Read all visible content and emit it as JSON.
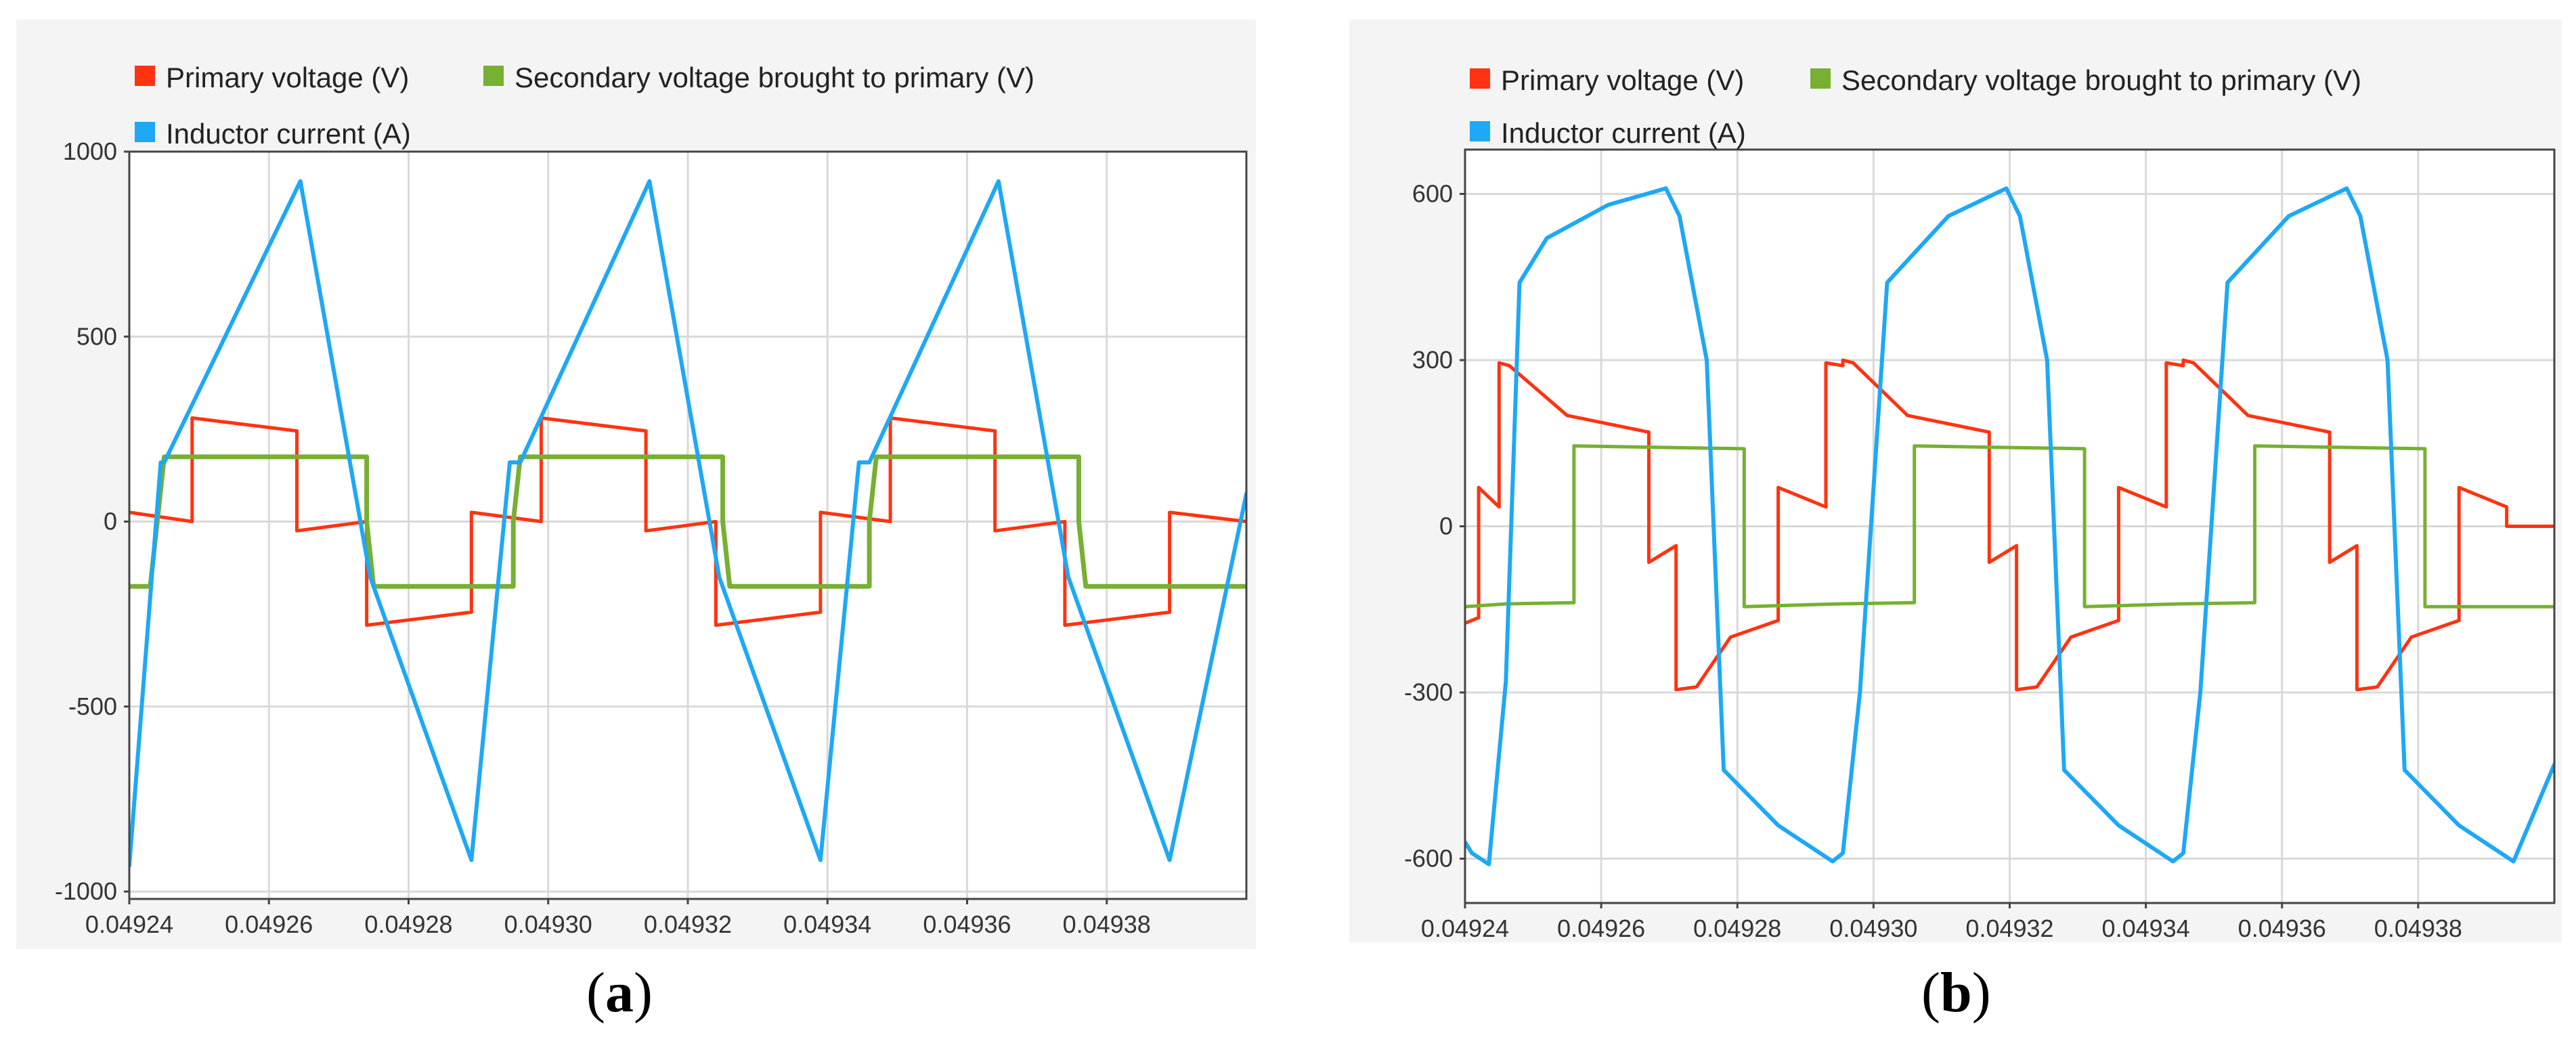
{
  "colors": {
    "primary": "#ff3311",
    "secondary": "#77b032",
    "inductor": "#1ea8f5",
    "grid": "#d9d9d9",
    "frame": "#444444",
    "plot_bg": "#ffffff",
    "panel_bg": "#f4f4f4"
  },
  "chart_data": [
    {
      "type": "line",
      "caption_letter": "a",
      "legend": [
        {
          "name": "Primary voltage (V)",
          "color_key": "primary"
        },
        {
          "name": "Secondary voltage brought to primary (V)",
          "color_key": "secondary"
        },
        {
          "name": "Inductor current (A)",
          "color_key": "inductor"
        }
      ],
      "xlim": [
        0.04924,
        0.0494
      ],
      "ylim": [
        -1020,
        1000
      ],
      "xticks": [
        0.04924,
        0.04926,
        0.04928,
        0.0493,
        0.04932,
        0.04934,
        0.04936,
        0.04938
      ],
      "xtick_labels": [
        "0.04924",
        "0.04926",
        "0.04928",
        "0.04930",
        "0.04932",
        "0.04934",
        "0.04936",
        "0.04938"
      ],
      "yticks": [
        1000,
        500,
        0,
        -500,
        -1000
      ],
      "ytick_labels": [
        "1000",
        "500",
        "0",
        "-500",
        "-1000"
      ],
      "grid": true,
      "series": [
        {
          "name": "Primary voltage (V)",
          "color_key": "primary",
          "width": 5,
          "x": [
            0.04924,
            0.049249,
            0.049249,
            0.049264,
            0.049264,
            0.049274,
            0.049274,
            0.049289,
            0.049289,
            0.049299,
            0.049299,
            0.049314,
            0.049314,
            0.049324,
            0.049324,
            0.049339,
            0.049339,
            0.049349,
            0.049349,
            0.049364,
            0.049364,
            0.049374,
            0.049374,
            0.049389,
            0.049389,
            0.0494
          ],
          "y": [
            25,
            0,
            280,
            245,
            -25,
            0,
            -280,
            -245,
            25,
            0,
            280,
            245,
            -25,
            0,
            -280,
            -245,
            25,
            0,
            280,
            245,
            -25,
            0,
            -280,
            -245,
            25,
            0
          ]
        },
        {
          "name": "Secondary voltage brought to primary (V)",
          "color_key": "secondary",
          "width": 7,
          "x": [
            0.04924,
            0.049243,
            0.049244,
            0.049245,
            0.049274,
            0.049274,
            0.049275,
            0.049295,
            0.049295,
            0.049296,
            0.049325,
            0.049325,
            0.049326,
            0.049346,
            0.049346,
            0.049347,
            0.049376,
            0.049376,
            0.049377,
            0.0494
          ],
          "y": [
            -175,
            -175,
            0,
            175,
            175,
            0,
            -175,
            -175,
            0,
            175,
            175,
            0,
            -175,
            -175,
            0,
            175,
            175,
            0,
            -175,
            -175
          ]
        },
        {
          "name": "Inductor current (A)",
          "color_key": "inductor",
          "width": 6,
          "x": [
            0.04924,
            0.0492445,
            0.049245,
            0.0492645,
            0.0492745,
            0.049289,
            0.0492945,
            0.049296,
            0.0493145,
            0.0493245,
            0.049339,
            0.0493445,
            0.049346,
            0.0493645,
            0.0493745,
            0.049389,
            0.0494
          ],
          "y": [
            -930,
            160,
            160,
            920,
            -150,
            -915,
            160,
            160,
            920,
            -150,
            -915,
            160,
            160,
            920,
            -150,
            -915,
            75
          ]
        }
      ]
    },
    {
      "type": "line",
      "caption_letter": "b",
      "legend": [
        {
          "name": "Primary voltage (V)",
          "color_key": "primary"
        },
        {
          "name": "Secondary voltage brought to primary (V)",
          "color_key": "secondary"
        },
        {
          "name": "Inductor current (A)",
          "color_key": "inductor"
        }
      ],
      "xlim": [
        0.04924,
        0.0494
      ],
      "ylim": [
        -680,
        680
      ],
      "xticks": [
        0.04924,
        0.04926,
        0.04928,
        0.0493,
        0.04932,
        0.04934,
        0.04936,
        0.04938
      ],
      "xtick_labels": [
        "0.04924",
        "0.04926",
        "0.04928",
        "0.04930",
        "0.04932",
        "0.04934",
        "0.04936",
        "0.04938"
      ],
      "yticks": [
        600,
        300,
        0,
        -300,
        -600
      ],
      "ytick_labels": [
        "600",
        "300",
        "0",
        "-300",
        "-600"
      ],
      "grid": true,
      "series": [
        {
          "name": "Primary voltage (V)",
          "color_key": "primary",
          "width": 5,
          "x": [
            0.04924,
            0.049242,
            0.049242,
            0.049245,
            0.049245,
            0.0492465,
            0.049255,
            0.049267,
            0.049267,
            0.049271,
            0.049271,
            0.049274,
            0.049279,
            0.049286,
            0.049286,
            0.049293,
            0.049293,
            0.0492955,
            0.0492955,
            0.049297,
            0.049305,
            0.049317,
            0.049317,
            0.049321,
            0.049321,
            0.049324,
            0.049329,
            0.049336,
            0.049336,
            0.049343,
            0.049343,
            0.0493455,
            0.0493455,
            0.049347,
            0.049355,
            0.049367,
            0.049367,
            0.049371,
            0.049371,
            0.049374,
            0.049379,
            0.049386,
            0.049386,
            0.049393,
            0.049393,
            0.0494
          ],
          "y": [
            -175,
            -165,
            70,
            35,
            295,
            290,
            200,
            170,
            -65,
            -35,
            -295,
            -290,
            -200,
            -170,
            70,
            35,
            295,
            290,
            300,
            295,
            200,
            170,
            -65,
            -35,
            -295,
            -290,
            -200,
            -170,
            70,
            35,
            295,
            290,
            300,
            295,
            200,
            170,
            -65,
            -35,
            -295,
            -290,
            -200,
            -170,
            70,
            35,
            0,
            0
          ]
        },
        {
          "name": "Secondary voltage brought to primary (V)",
          "color_key": "secondary",
          "width": 5,
          "x": [
            0.04924,
            0.049246,
            0.049246,
            0.049256,
            0.049256,
            0.049281,
            0.049281,
            0.049295,
            0.049295,
            0.049306,
            0.049306,
            0.049331,
            0.049331,
            0.049345,
            0.049345,
            0.049356,
            0.049356,
            0.049381,
            0.049381,
            0.0494
          ],
          "y": [
            -145,
            -140,
            -140,
            -138,
            145,
            140,
            -145,
            -140,
            -140,
            -138,
            145,
            140,
            -145,
            -140,
            -140,
            -138,
            145,
            140,
            -145,
            -145
          ]
        },
        {
          "name": "Inductor current (A)",
          "color_key": "inductor",
          "width": 6,
          "x": [
            0.04924,
            0.049241,
            0.0492435,
            0.049246,
            0.049248,
            0.049252,
            0.049261,
            0.0492695,
            0.0492715,
            0.0492755,
            0.049278,
            0.049286,
            0.049294,
            0.0492955,
            0.049298,
            0.049302,
            0.049311,
            0.0493195,
            0.0493215,
            0.0493255,
            0.049328,
            0.049336,
            0.049344,
            0.0493455,
            0.049348,
            0.049352,
            0.049361,
            0.0493695,
            0.0493715,
            0.0493755,
            0.049378,
            0.049386,
            0.049394,
            0.0494
          ],
          "y": [
            -570,
            -590,
            -610,
            -280,
            440,
            520,
            580,
            610,
            560,
            300,
            -440,
            -540,
            -605,
            -590,
            -300,
            440,
            560,
            610,
            560,
            300,
            -440,
            -540,
            -605,
            -590,
            -300,
            440,
            560,
            610,
            560,
            300,
            -440,
            -540,
            -605,
            -430
          ]
        }
      ]
    }
  ]
}
